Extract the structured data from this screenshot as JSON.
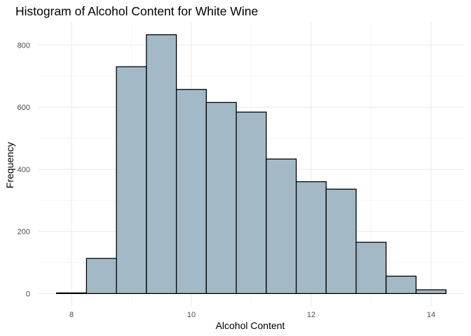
{
  "chart_data": {
    "type": "bar",
    "subtype": "histogram",
    "title": "Histogram of Alcohol Content for White Wine",
    "xlabel": "Alcohol Content",
    "ylabel": "Frequency",
    "bin_width": 0.5,
    "bins": [
      {
        "x0": 7.75,
        "x1": 8.25,
        "count": 2
      },
      {
        "x0": 8.25,
        "x1": 8.75,
        "count": 113
      },
      {
        "x0": 8.75,
        "x1": 9.25,
        "count": 730
      },
      {
        "x0": 9.25,
        "x1": 9.75,
        "count": 833
      },
      {
        "x0": 9.75,
        "x1": 10.25,
        "count": 657
      },
      {
        "x0": 10.25,
        "x1": 10.75,
        "count": 615
      },
      {
        "x0": 10.75,
        "x1": 11.25,
        "count": 584
      },
      {
        "x0": 11.25,
        "x1": 11.75,
        "count": 433
      },
      {
        "x0": 11.75,
        "x1": 12.25,
        "count": 360
      },
      {
        "x0": 12.25,
        "x1": 12.75,
        "count": 336
      },
      {
        "x0": 12.75,
        "x1": 13.25,
        "count": 165
      },
      {
        "x0": 13.25,
        "x1": 13.75,
        "count": 56
      },
      {
        "x0": 13.75,
        "x1": 14.25,
        "count": 12
      }
    ],
    "xlim": [
      7.45,
      14.55
    ],
    "ylim": [
      -42,
      875
    ],
    "x_ticks": [
      8,
      10,
      12,
      14
    ],
    "x_minor_ticks": [
      9,
      11,
      13
    ],
    "y_ticks": [
      0,
      200,
      400,
      600,
      800
    ],
    "y_minor_ticks": [
      100,
      300,
      500,
      700
    ],
    "grid": true,
    "bar_fill": "#a3bac6",
    "bar_stroke": "#000000"
  }
}
